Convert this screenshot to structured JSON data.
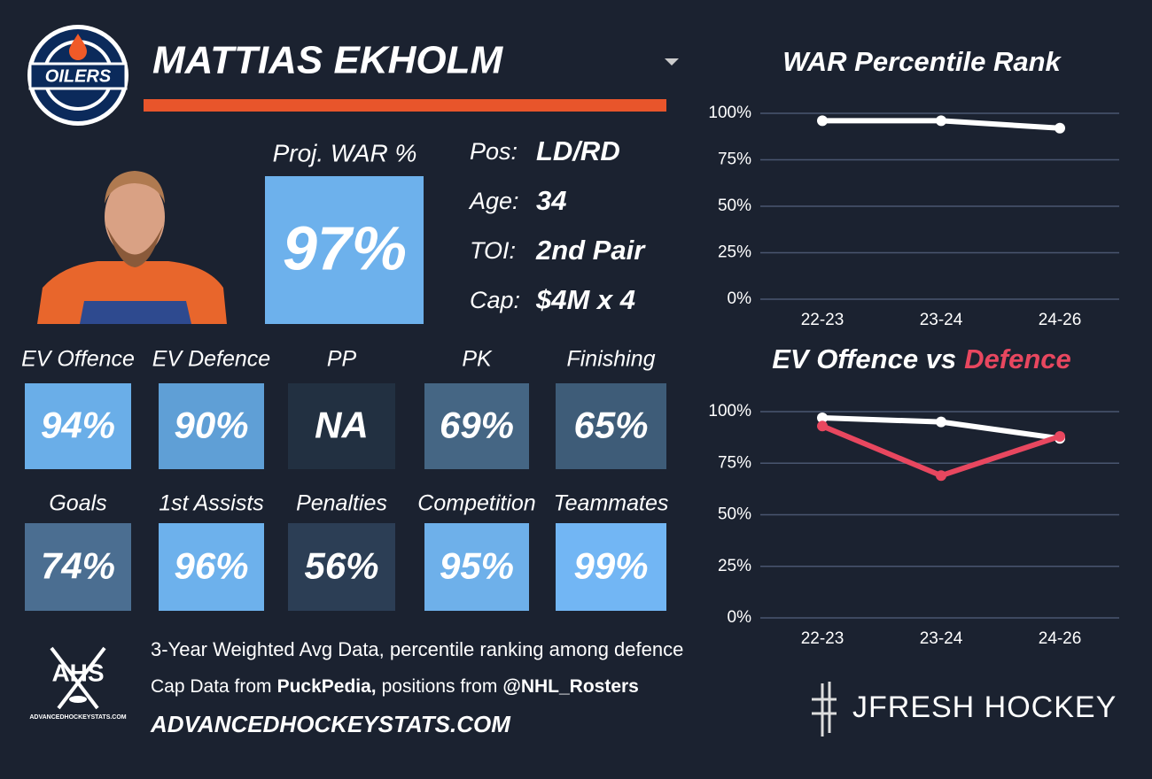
{
  "header": {
    "team_logo": "OILERS",
    "player_name": "MATTIAS EKHOLM"
  },
  "projection": {
    "label": "Proj. WAR %",
    "value": "97%",
    "color": "#6db1ec"
  },
  "info": [
    {
      "label": "Pos:",
      "value": "LD/RD"
    },
    {
      "label": "Age:",
      "value": "34"
    },
    {
      "label": "TOI:",
      "value": "2nd Pair"
    },
    {
      "label": "Cap:",
      "value": "$4M x 4"
    }
  ],
  "tiles": [
    {
      "label": "EV Offence",
      "value": "94%",
      "color": "#6aaee8"
    },
    {
      "label": "EV Defence",
      "value": "90%",
      "color": "#5f9fd6"
    },
    {
      "label": "PP",
      "value": "NA",
      "color": "#223041"
    },
    {
      "label": "PK",
      "value": "69%",
      "color": "#456684"
    },
    {
      "label": "Finishing",
      "value": "65%",
      "color": "#3e5c78"
    },
    {
      "label": "Goals",
      "value": "74%",
      "color": "#4b6e91"
    },
    {
      "label": "1st Assists",
      "value": "96%",
      "color": "#6db1ec"
    },
    {
      "label": "Penalties",
      "value": "56%",
      "color": "#2c3e55"
    },
    {
      "label": "Competition",
      "value": "95%",
      "color": "#6eb0ea"
    },
    {
      "label": "Teammates",
      "value": "99%",
      "color": "#72b6f4"
    }
  ],
  "footer": {
    "logo": "AHS",
    "logo_caption": "ADVANCEDHOCKEYSTATS.COM",
    "note": "3-Year Weighted Avg Data, percentile ranking among defence",
    "credits": [
      {
        "text": "Cap Data from",
        "bold": false
      },
      {
        "text": "PuckPedia,",
        "bold": true
      },
      {
        "text": "positions from",
        "bold": false
      },
      {
        "text": "@NHL_Rosters",
        "bold": true
      }
    ],
    "site": "ADVANCEDHOCKEYSTATS.COM"
  },
  "brand": "JFRESH HOCKEY",
  "chart_data": [
    {
      "type": "line",
      "title": "WAR Percentile Rank",
      "categories": [
        "22-23",
        "23-24",
        "24-26"
      ],
      "series": [
        {
          "color": "#ffffff",
          "values": [
            96,
            96,
            92
          ]
        }
      ],
      "ylim": [
        0,
        100
      ],
      "yticks": [
        {
          "value": 0,
          "label": "0%"
        },
        {
          "value": 25,
          "label": "25%"
        },
        {
          "value": 50,
          "label": "50%"
        },
        {
          "value": 75,
          "label": "75%"
        },
        {
          "value": 100,
          "label": "100%"
        }
      ],
      "grid": true
    },
    {
      "type": "line",
      "title_parts": [
        {
          "text": "EV Offence vs",
          "color": "#ffffff"
        },
        {
          "text": "Defence",
          "color": "#e8475f"
        }
      ],
      "categories": [
        "22-23",
        "23-24",
        "24-26"
      ],
      "series": [
        {
          "color": "#ffffff",
          "values": [
            97,
            95,
            87
          ]
        },
        {
          "color": "#e8475f",
          "values": [
            93,
            69,
            88
          ]
        }
      ],
      "ylim": [
        0,
        100
      ],
      "yticks": [
        {
          "value": 0,
          "label": "0%"
        },
        {
          "value": 25,
          "label": "25%"
        },
        {
          "value": 50,
          "label": "50%"
        },
        {
          "value": 75,
          "label": "75%"
        },
        {
          "value": 100,
          "label": "100%"
        }
      ],
      "grid": true
    }
  ]
}
